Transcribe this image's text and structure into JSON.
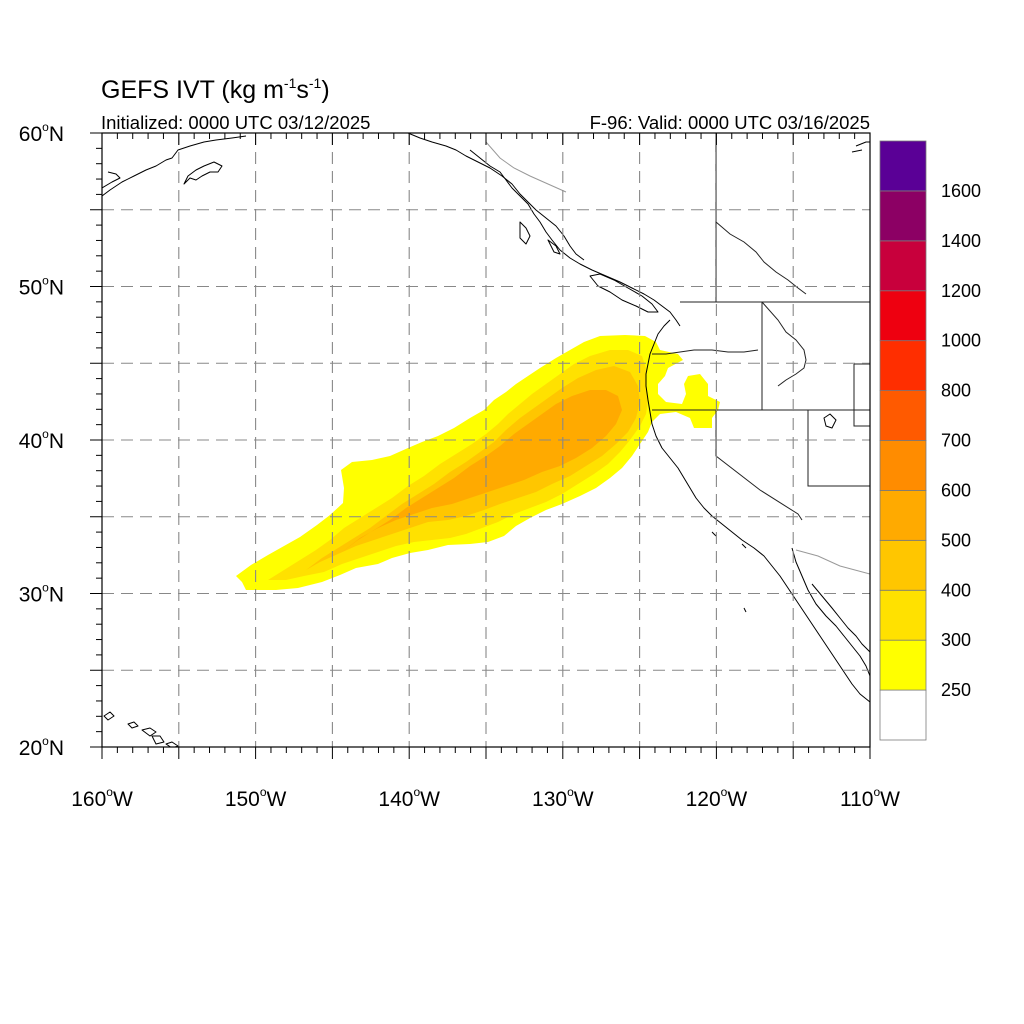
{
  "header": {
    "title_main": "GEFS IVT (kg m",
    "title_sup1": "-1",
    "title_mid": "s",
    "title_sup2": "-1",
    "title_end": ")",
    "initialized": "Initialized: 0000 UTC 03/12/2025",
    "valid": "F-96: Valid: 0000 UTC 03/16/2025"
  },
  "map": {
    "lon_range": [
      -160,
      -110
    ],
    "lat_range": [
      20,
      60
    ],
    "lat_labels": [
      {
        "lat": 60,
        "num": "60",
        "hemi": "N"
      },
      {
        "lat": 50,
        "num": "50",
        "hemi": "N"
      },
      {
        "lat": 40,
        "num": "40",
        "hemi": "N"
      },
      {
        "lat": 30,
        "num": "30",
        "hemi": "N"
      },
      {
        "lat": 20,
        "num": "20",
        "hemi": "N"
      }
    ],
    "lon_labels": [
      {
        "lon": -160,
        "num": "160",
        "hemi": "W"
      },
      {
        "lon": -150,
        "num": "150",
        "hemi": "W"
      },
      {
        "lon": -140,
        "num": "140",
        "hemi": "W"
      },
      {
        "lon": -130,
        "num": "130",
        "hemi": "W"
      },
      {
        "lon": -120,
        "num": "120",
        "hemi": "W"
      },
      {
        "lon": -110,
        "num": "110",
        "hemi": "W"
      }
    ],
    "gridlines_dashed": true
  },
  "colorbar": {
    "colors": [
      "#ffffff",
      "#ffff00",
      "#ffe100",
      "#ffc600",
      "#ffaa00",
      "#ff8c00",
      "#ff5a00",
      "#ff2e00",
      "#ee0010",
      "#c8003c",
      "#8c0064",
      "#5a0096"
    ],
    "labels": [
      "250",
      "300",
      "400",
      "500",
      "600",
      "700",
      "800",
      "1000",
      "1200",
      "1400",
      "1600"
    ]
  },
  "ivt_plume_levels": [
    {
      "level": "250",
      "color": "#ffff00"
    },
    {
      "level": "300",
      "color": "#ffe100"
    },
    {
      "level": "400",
      "color": "#ffc600"
    },
    {
      "level": "500",
      "color": "#ffaa00"
    }
  ]
}
